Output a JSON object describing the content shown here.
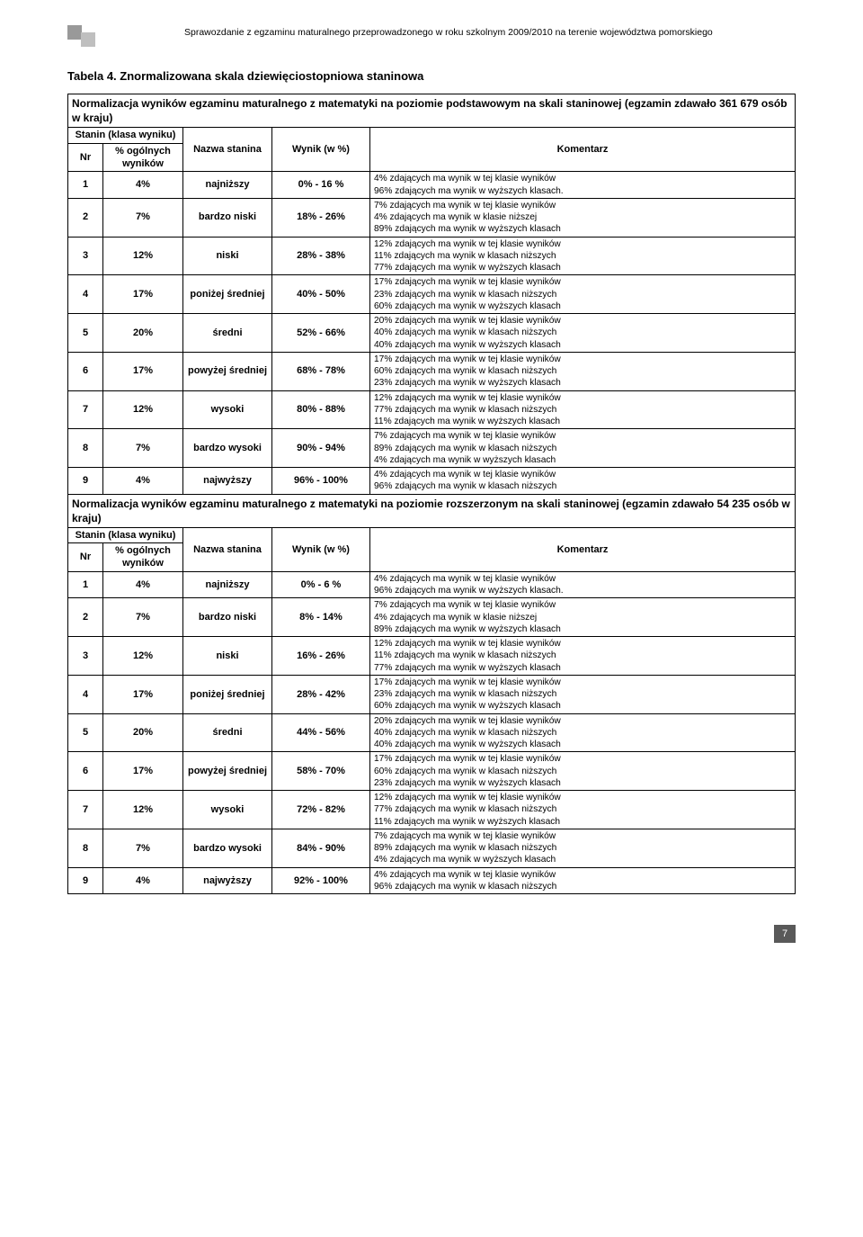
{
  "header_text": "Sprawozdanie z egzaminu maturalnego przeprowadzonego w roku szkolnym 2009/2010 na terenie województwa pomorskiego",
  "title": "Tabela 4. Znormalizowana skala dziewięciostopniowa staninowa",
  "section1_heading": "Normalizacja wyników egzaminu maturalnego z matematyki na poziomie podstawowym na skali staninowej (egzamin zdawało 361 679 osób w kraju)",
  "section2_heading": "Normalizacja wyników egzaminu maturalnego z matematyki na poziomie rozszerzonym na skali staninowej (egzamin zdawało 54 235 osób w kraju)",
  "col_headers": {
    "stanin_group": "Stanin (klasa wyniku)",
    "nr": "Nr",
    "pct": "% ogólnych wyników",
    "nazwa": "Nazwa stanina",
    "wynik": "Wynik (w %)",
    "komentarz": "Komentarz"
  },
  "rows1": [
    {
      "nr": "1",
      "pct": "4%",
      "nazwa": "najniższy",
      "wynik": "0% - 16 %",
      "komentarz": "4% zdających ma wynik w tej klasie wyników\n96% zdających ma wynik w wyższych klasach."
    },
    {
      "nr": "2",
      "pct": "7%",
      "nazwa": "bardzo niski",
      "wynik": "18% - 26%",
      "komentarz": "7% zdających ma wynik w tej klasie wyników\n4% zdających ma  wynik w klasie niższej\n89% zdających ma wynik w wyższych klasach"
    },
    {
      "nr": "3",
      "pct": "12%",
      "nazwa": "niski",
      "wynik": "28% - 38%",
      "komentarz": "12% zdających ma wynik w tej klasie wyników\n11% zdających ma  wynik w klasach niższych\n77% zdających ma wynik w wyższych klasach"
    },
    {
      "nr": "4",
      "pct": "17%",
      "nazwa": "poniżej średniej",
      "wynik": "40% - 50%",
      "komentarz": "17% zdających ma wynik w tej klasie wyników\n23% zdających ma  wynik w klasach niższych\n60% zdających ma wynik w wyższych klasach"
    },
    {
      "nr": "5",
      "pct": "20%",
      "nazwa": "średni",
      "wynik": "52% - 66%",
      "komentarz": "20% zdających ma wynik w tej klasie wyników\n40% zdających ma  wynik w klasach niższych\n40% zdających ma wynik w wyższych klasach"
    },
    {
      "nr": "6",
      "pct": "17%",
      "nazwa": "powyżej średniej",
      "wynik": "68% - 78%",
      "komentarz": "17% zdających ma wynik w tej klasie wyników\n60% zdających ma  wynik w klasach niższych\n23% zdających ma wynik w wyższych klasach"
    },
    {
      "nr": "7",
      "pct": "12%",
      "nazwa": "wysoki",
      "wynik": "80% - 88%",
      "komentarz": "12% zdających ma wynik w tej klasie wyników\n77% zdających ma  wynik w klasach niższych\n11% zdających ma wynik w wyższych klasach"
    },
    {
      "nr": "8",
      "pct": "7%",
      "nazwa": "bardzo wysoki",
      "wynik": "90% - 94%",
      "komentarz": "7% zdających ma wynik w tej klasie wyników\n89% zdających ma  wynik w klasach niższych\n4% zdających ma wynik w wyższych klasach"
    },
    {
      "nr": "9",
      "pct": "4%",
      "nazwa": "najwyższy",
      "wynik": "96% - 100%",
      "komentarz": "4% zdających ma wynik w tej klasie wyników\n96% zdających ma  wynik w klasach niższych"
    }
  ],
  "rows2": [
    {
      "nr": "1",
      "pct": "4%",
      "nazwa": "najniższy",
      "wynik": "0% - 6 %",
      "komentarz": "4% zdających ma wynik w tej klasie wyników\n96% zdających ma wynik w wyższych klasach."
    },
    {
      "nr": "2",
      "pct": "7%",
      "nazwa": "bardzo niski",
      "wynik": "8% - 14%",
      "komentarz": "7% zdających ma wynik w tej klasie wyników\n4% zdających ma  wynik w klasie niższej\n89% zdających ma wynik w wyższych klasach"
    },
    {
      "nr": "3",
      "pct": "12%",
      "nazwa": "niski",
      "wynik": "16% - 26%",
      "komentarz": "12% zdających ma wynik w tej klasie wyników\n11% zdających ma  wynik w klasach niższych\n77% zdających ma wynik w wyższych klasach"
    },
    {
      "nr": "4",
      "pct": "17%",
      "nazwa": "poniżej średniej",
      "wynik": "28% - 42%",
      "komentarz": "17% zdających ma wynik w tej klasie wyników\n23% zdających ma  wynik w klasach niższych\n60% zdających ma wynik w wyższych klasach"
    },
    {
      "nr": "5",
      "pct": "20%",
      "nazwa": "średni",
      "wynik": "44% - 56%",
      "komentarz": "20% zdających ma wynik w tej klasie wyników\n40% zdających ma  wynik w klasach niższych\n40% zdających ma wynik w wyższych klasach"
    },
    {
      "nr": "6",
      "pct": "17%",
      "nazwa": "powyżej średniej",
      "wynik": "58% - 70%",
      "komentarz": "17% zdających ma wynik w tej klasie wyników\n60% zdających ma  wynik w klasach niższych\n23% zdających ma wynik w wyższych klasach"
    },
    {
      "nr": "7",
      "pct": "12%",
      "nazwa": "wysoki",
      "wynik": "72% - 82%",
      "komentarz": "12% zdających ma wynik w tej klasie wyników\n77% zdających ma  wynik w klasach niższych\n11% zdających ma wynik w wyższych klasach"
    },
    {
      "nr": "8",
      "pct": "7%",
      "nazwa": "bardzo wysoki",
      "wynik": "84% - 90%",
      "komentarz": "7% zdających ma wynik w tej klasie wyników\n89% zdających ma  wynik w klasach niższych\n4% zdających ma wynik w wyższych klasach"
    },
    {
      "nr": "9",
      "pct": "4%",
      "nazwa": "najwyższy",
      "wynik": "92% - 100%",
      "komentarz": "4% zdających ma wynik w tej klasie wyników\n96% zdających ma  wynik w klasach niższych"
    }
  ],
  "page_number": "7"
}
